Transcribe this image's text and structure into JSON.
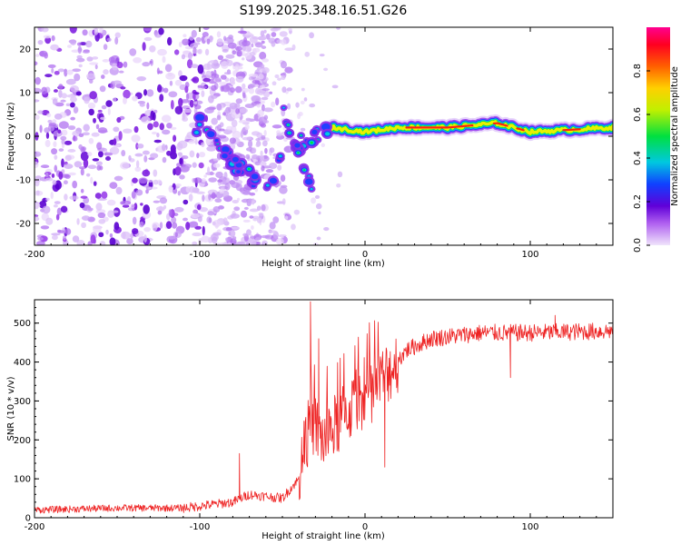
{
  "chart_data": [
    {
      "type": "heatmap",
      "title": "S199.2025.348.16.51.G26",
      "xlabel": "Height of straight line (km)",
      "ylabel": "Frequency (Hz)",
      "xlim": [
        -200,
        150
      ],
      "ylim": [
        -25,
        25
      ],
      "xticks": [
        -200,
        -100,
        0,
        100
      ],
      "yticks": [
        -20,
        -10,
        0,
        10,
        20
      ],
      "colorbar": {
        "label": "Normalized spectral amplitude",
        "range": [
          0.0,
          1.0
        ],
        "ticks": [
          0.0,
          0.2,
          0.4,
          0.6,
          0.8
        ],
        "colors": [
          "#e8d8f8",
          "#8000e0",
          "#2040ff",
          "#00c8e0",
          "#00e040",
          "#f0f000",
          "#ff8000",
          "#ff0000",
          "#ff0090"
        ]
      },
      "ridge": {
        "description_points": [
          {
            "x": -100,
            "y": 4
          },
          {
            "x": -90,
            "y": -1
          },
          {
            "x": -80,
            "y": -6
          },
          {
            "x": -70,
            "y": -9
          },
          {
            "x": -60,
            "y": -13
          },
          {
            "x": -45,
            "y": 0
          },
          {
            "x": -35,
            "y": -1
          },
          {
            "x": -20,
            "y": 2
          },
          {
            "x": 0,
            "y": 1
          },
          {
            "x": 20,
            "y": 2
          },
          {
            "x": 50,
            "y": 2
          },
          {
            "x": 80,
            "y": 3
          },
          {
            "x": 100,
            "y": 1
          },
          {
            "x": 150,
            "y": 2
          }
        ],
        "secondary_branch": [
          {
            "x": -50,
            "y": 6
          },
          {
            "x": -40,
            "y": -3
          },
          {
            "x": -30,
            "y": -15
          }
        ]
      }
    },
    {
      "type": "line",
      "xlabel": "Height of straight line (km)",
      "ylabel": "SNR (10 * v/v)",
      "xlim": [
        -200,
        150
      ],
      "ylim": [
        0,
        560
      ],
      "xticks": [
        -200,
        -100,
        0,
        100
      ],
      "yticks": [
        0,
        100,
        200,
        300,
        400,
        500
      ],
      "color": "#ee2222",
      "series": [
        {
          "name": "SNR",
          "anchors": [
            {
              "x": -200,
              "y": 20
            },
            {
              "x": -150,
              "y": 25
            },
            {
              "x": -110,
              "y": 25
            },
            {
              "x": -80,
              "y": 40
            },
            {
              "x": -70,
              "y": 60
            },
            {
              "x": -50,
              "y": 50
            },
            {
              "x": -40,
              "y": 100
            },
            {
              "x": -33,
              "y": 250
            },
            {
              "x": -25,
              "y": 200
            },
            {
              "x": -15,
              "y": 250
            },
            {
              "x": -5,
              "y": 300
            },
            {
              "x": 5,
              "y": 330
            },
            {
              "x": 15,
              "y": 380
            },
            {
              "x": 25,
              "y": 430
            },
            {
              "x": 40,
              "y": 460
            },
            {
              "x": 70,
              "y": 475
            },
            {
              "x": 100,
              "y": 475
            },
            {
              "x": 150,
              "y": 480
            }
          ],
          "spikes": [
            {
              "x": -76,
              "y": 165
            },
            {
              "x": -33,
              "y": 555
            },
            {
              "x": -28,
              "y": 460
            },
            {
              "x": -15,
              "y": 410
            },
            {
              "x": 12,
              "y": 130
            },
            {
              "x": 88,
              "y": 360
            },
            {
              "x": 115,
              "y": 520
            }
          ]
        }
      ]
    }
  ]
}
